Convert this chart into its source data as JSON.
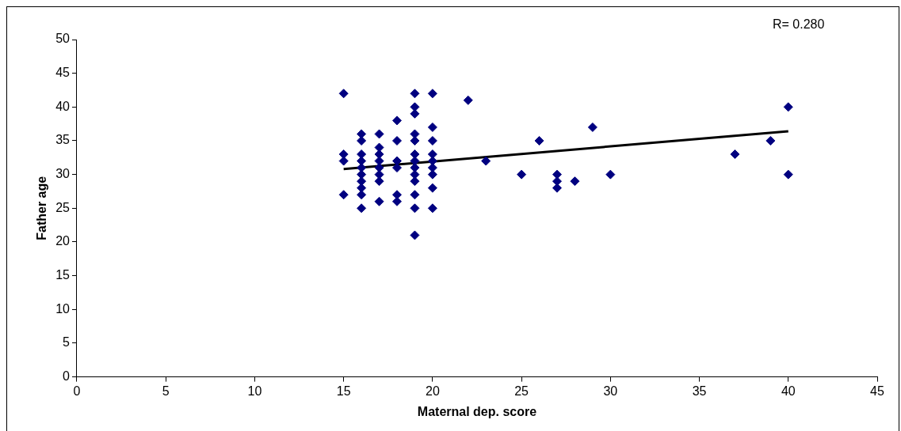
{
  "chart_data": {
    "type": "scatter",
    "xlabel": "Maternal dep. score",
    "ylabel": "Father age",
    "xlim": [
      0,
      45
    ],
    "xticks": [
      0,
      5,
      10,
      15,
      20,
      25,
      30,
      35,
      40,
      45
    ],
    "ylim": [
      0,
      50
    ],
    "yticks": [
      0,
      5,
      10,
      15,
      20,
      25,
      30,
      35,
      40,
      45,
      50
    ],
    "grid": false,
    "legend": false,
    "marker": "diamond",
    "annotations": [
      "R= 0.280"
    ],
    "series": [
      {
        "color": "#000080",
        "x": [
          15,
          15,
          15,
          15,
          16,
          16,
          16,
          16,
          16,
          16,
          16,
          16,
          16,
          16,
          17,
          17,
          17,
          17,
          17,
          17,
          17,
          17,
          18,
          18,
          18,
          18,
          18,
          18,
          19,
          19,
          19,
          19,
          19,
          19,
          19,
          19,
          19,
          19,
          19,
          19,
          19,
          20,
          20,
          20,
          20,
          20,
          20,
          20,
          20,
          20,
          22,
          23,
          25,
          26,
          27,
          27,
          27,
          28,
          29,
          30,
          37,
          39,
          40,
          40
        ],
        "values": [
          42,
          33,
          32,
          27,
          36,
          35,
          33,
          32,
          31,
          30,
          29,
          28,
          27,
          25,
          36,
          34,
          33,
          32,
          31,
          30,
          29,
          26,
          38,
          35,
          32,
          31,
          27,
          26,
          42,
          40,
          39,
          36,
          35,
          33,
          32,
          31,
          30,
          29,
          27,
          25,
          21,
          42,
          37,
          35,
          33,
          32,
          31,
          30,
          28,
          25,
          41,
          32,
          30,
          35,
          30,
          29,
          28,
          29,
          37,
          30,
          33,
          35,
          40,
          30
        ]
      },
      {
        "type": "line",
        "color": "#000000",
        "marker": "none",
        "x": [
          15,
          40
        ],
        "values": [
          30.8,
          36.4
        ]
      }
    ]
  }
}
